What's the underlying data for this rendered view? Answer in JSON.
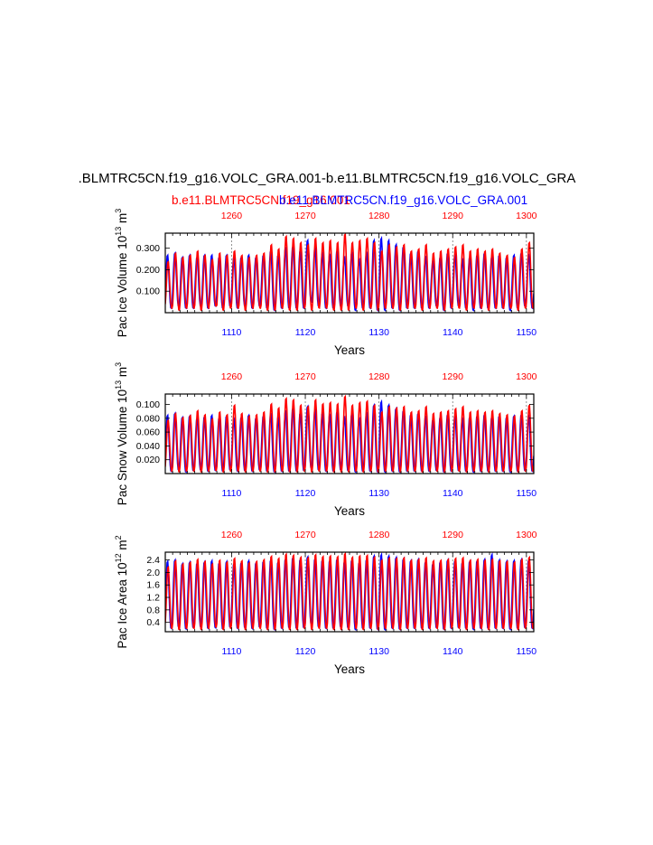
{
  "figure": {
    "main_title": ".BLMTRC5CN.f19_g16.VOLC_GRA.001-b.e11.BLMTRC5CN.f19_g16.VOLC_GRA",
    "subtitle_red": "b.e11.BLMTRC5CN.f19_g16.001",
    "subtitle_blue": "b.e11.BLMTRC5CN.f19_g16.VOLC_GRA.001",
    "colors": {
      "red": "#ff0000",
      "blue": "#0000ff",
      "axis": "#000000",
      "grid": "#777777"
    }
  },
  "chart_data": [
    {
      "type": "line",
      "ylabel_base": "Pac Ice Volume 10",
      "ylabel_exp": "13",
      "ylabel_unit": " m",
      "ylabel_unit_exp": "3",
      "xlabel": "Years",
      "bottom_axis": {
        "range": [
          1101,
          1151
        ],
        "ticks": [
          1110,
          1120,
          1130,
          1140,
          1150
        ],
        "color": "blue"
      },
      "top_axis": {
        "range": [
          1251,
          1301
        ],
        "ticks": [
          1260,
          1270,
          1280,
          1290,
          1300
        ],
        "color": "red"
      },
      "ylim": [
        0.0,
        0.37
      ],
      "yticks": [
        0.1,
        0.2,
        0.3
      ],
      "ytick_labels": [
        "0.100",
        "0.200",
        "0.300"
      ],
      "series": [
        {
          "name": "b.e11.BLMTRC5CN.f19_g16.VOLC_GRA.001",
          "color": "blue",
          "cycle_min": 0.03,
          "cycle_max": 0.27,
          "peaks": [
            0.27,
            0.28,
            0.26,
            0.27,
            0.26,
            0.27,
            0.27,
            0.26,
            0.27,
            0.26,
            0.26,
            0.27,
            0.26,
            0.27,
            0.29,
            0.27,
            0.3,
            0.31,
            0.29,
            0.34,
            0.3,
            0.28,
            0.27,
            0.29,
            0.26,
            0.28,
            0.25,
            0.28,
            0.34,
            0.35,
            0.34,
            0.32,
            0.31,
            0.28,
            0.29,
            0.26,
            0.24,
            0.26,
            0.28,
            0.27,
            0.25,
            0.26,
            0.27,
            0.28,
            0.26,
            0.27,
            0.26,
            0.27,
            0.28,
            0.27
          ],
          "troughs": [
            0.02,
            0.03,
            0.02,
            0.02,
            0.03,
            0.02,
            0.03,
            0.02,
            0.03,
            0.02,
            0.03,
            0.02,
            0.03,
            0.02,
            0.01,
            0.02,
            0.02,
            0.02,
            0.02,
            0.05,
            0.03,
            0.02,
            0.02,
            0.03,
            0.03,
            0.01,
            0.02,
            0.02,
            0.01,
            0.01,
            0.02,
            0.01,
            0.02,
            0.02,
            0.02,
            0.02,
            0.03,
            0.01,
            0.02,
            0.03,
            0.02,
            0.01,
            0.02,
            0.02,
            0.02,
            0.02,
            0.01,
            0.02,
            0.03,
            0.02
          ]
        },
        {
          "name": "b.e11.BLMTRC5CN.f19_g16.001",
          "color": "red",
          "cycle_min": 0.02,
          "cycle_max": 0.3,
          "peaks": [
            0.24,
            0.28,
            0.26,
            0.27,
            0.29,
            0.27,
            0.25,
            0.28,
            0.27,
            0.29,
            0.27,
            0.26,
            0.27,
            0.28,
            0.32,
            0.3,
            0.36,
            0.35,
            0.33,
            0.32,
            0.35,
            0.33,
            0.34,
            0.33,
            0.37,
            0.33,
            0.34,
            0.35,
            0.33,
            0.29,
            0.32,
            0.31,
            0.32,
            0.29,
            0.3,
            0.32,
            0.28,
            0.29,
            0.3,
            0.31,
            0.32,
            0.29,
            0.3,
            0.29,
            0.3,
            0.28,
            0.27,
            0.26,
            0.3,
            0.33
          ],
          "troughs": [
            0.02,
            0.01,
            0.02,
            0.02,
            0.01,
            0.02,
            0.03,
            0.01,
            0.02,
            0.02,
            0.01,
            0.02,
            0.02,
            0.01,
            0.01,
            0.02,
            0.01,
            0.01,
            0.02,
            0.01,
            0.02,
            0.02,
            0.01,
            0.01,
            0.01,
            0.02,
            0.01,
            0.02,
            0.01,
            0.02,
            0.02,
            0.01,
            0.02,
            0.02,
            0.01,
            0.02,
            0.02,
            0.01,
            0.02,
            0.02,
            0.01,
            0.02,
            0.02,
            0.01,
            0.02,
            0.02,
            0.02,
            0.01,
            0.02,
            0.02
          ]
        }
      ]
    },
    {
      "type": "line",
      "ylabel_base": "Pac Snow Volume 10",
      "ylabel_exp": "13",
      "ylabel_unit": " m",
      "ylabel_unit_exp": "3",
      "xlabel": "Years",
      "bottom_axis": {
        "range": [
          1101,
          1151
        ],
        "ticks": [
          1110,
          1120,
          1130,
          1140,
          1150
        ],
        "color": "blue"
      },
      "top_axis": {
        "range": [
          1251,
          1301
        ],
        "ticks": [
          1260,
          1270,
          1280,
          1290,
          1300
        ],
        "color": "red"
      },
      "ylim": [
        0.0,
        0.115
      ],
      "yticks": [
        0.02,
        0.04,
        0.06,
        0.08,
        0.1
      ],
      "ytick_labels": [
        "0.020",
        "0.040",
        "0.060",
        "0.080",
        "0.100"
      ],
      "series": [
        {
          "name": "b.e11.BLMTRC5CN.f19_g16.VOLC_GRA.001",
          "color": "blue",
          "cycle_min": 0.003,
          "cycle_max": 0.085,
          "peaks": [
            0.085,
            0.088,
            0.082,
            0.084,
            0.08,
            0.083,
            0.085,
            0.081,
            0.084,
            0.08,
            0.082,
            0.085,
            0.081,
            0.084,
            0.086,
            0.082,
            0.09,
            0.095,
            0.088,
            0.098,
            0.092,
            0.088,
            0.085,
            0.09,
            0.082,
            0.086,
            0.08,
            0.088,
            0.1,
            0.105,
            0.1,
            0.095,
            0.092,
            0.086,
            0.088,
            0.082,
            0.078,
            0.082,
            0.086,
            0.084,
            0.08,
            0.082,
            0.084,
            0.086,
            0.082,
            0.084,
            0.082,
            0.084,
            0.086,
            0.084
          ],
          "troughs": [
            0.003,
            0.005,
            0.002,
            0.004,
            0.005,
            0.003,
            0.004,
            0.003,
            0.005,
            0.003,
            0.004,
            0.003,
            0.005,
            0.003,
            0.002,
            0.003,
            0.003,
            0.003,
            0.004,
            0.008,
            0.005,
            0.003,
            0.003,
            0.005,
            0.004,
            0.002,
            0.003,
            0.003,
            0.002,
            0.002,
            0.003,
            0.002,
            0.003,
            0.003,
            0.003,
            0.003,
            0.004,
            0.002,
            0.003,
            0.004,
            0.003,
            0.002,
            0.003,
            0.003,
            0.003,
            0.003,
            0.002,
            0.003,
            0.004,
            0.003
          ]
        },
        {
          "name": "b.e11.BLMTRC5CN.f19_g16.001",
          "color": "red",
          "cycle_min": 0.002,
          "cycle_max": 0.095,
          "peaks": [
            0.078,
            0.088,
            0.082,
            0.085,
            0.092,
            0.086,
            0.08,
            0.09,
            0.086,
            0.1,
            0.088,
            0.084,
            0.086,
            0.09,
            0.102,
            0.096,
            0.11,
            0.108,
            0.1,
            0.098,
            0.108,
            0.102,
            0.104,
            0.102,
            0.113,
            0.1,
            0.104,
            0.106,
            0.1,
            0.09,
            0.098,
            0.096,
            0.098,
            0.09,
            0.092,
            0.098,
            0.088,
            0.09,
            0.092,
            0.095,
            0.098,
            0.09,
            0.092,
            0.09,
            0.092,
            0.088,
            0.086,
            0.084,
            0.092,
            0.1
          ],
          "troughs": [
            0.003,
            0.002,
            0.003,
            0.003,
            0.002,
            0.003,
            0.004,
            0.002,
            0.003,
            0.003,
            0.002,
            0.003,
            0.003,
            0.002,
            0.002,
            0.003,
            0.002,
            0.002,
            0.003,
            0.002,
            0.003,
            0.003,
            0.002,
            0.002,
            0.002,
            0.003,
            0.002,
            0.003,
            0.002,
            0.003,
            0.003,
            0.002,
            0.003,
            0.003,
            0.002,
            0.003,
            0.003,
            0.002,
            0.003,
            0.003,
            0.002,
            0.003,
            0.003,
            0.002,
            0.003,
            0.003,
            0.003,
            0.002,
            0.003,
            0.003
          ]
        }
      ]
    },
    {
      "type": "line",
      "ylabel_base": "Pac Ice Area 10",
      "ylabel_exp": "12",
      "ylabel_unit": " m",
      "ylabel_unit_exp": "2",
      "xlabel": "Years",
      "bottom_axis": {
        "range": [
          1101,
          1151
        ],
        "ticks": [
          1110,
          1120,
          1130,
          1140,
          1150
        ],
        "color": "blue"
      },
      "top_axis": {
        "range": [
          1251,
          1301
        ],
        "ticks": [
          1260,
          1270,
          1280,
          1290,
          1300
        ],
        "color": "red"
      },
      "ylim": [
        0.1,
        2.65
      ],
      "yticks": [
        0.4,
        0.8,
        1.2,
        1.6,
        2.0,
        2.4
      ],
      "ytick_labels": [
        "0.4",
        "0.8",
        "1.2",
        "1.6",
        "2.0",
        "2.4"
      ],
      "series": [
        {
          "name": "b.e11.BLMTRC5CN.f19_g16.VOLC_GRA.001",
          "color": "blue",
          "cycle_min": 0.2,
          "cycle_max": 2.35,
          "peaks": [
            2.38,
            2.42,
            2.3,
            2.35,
            2.32,
            2.36,
            2.4,
            2.33,
            2.37,
            2.3,
            2.34,
            2.4,
            2.33,
            2.38,
            2.42,
            2.36,
            2.45,
            2.5,
            2.44,
            2.52,
            2.46,
            2.42,
            2.4,
            2.45,
            2.36,
            2.42,
            2.34,
            2.44,
            2.55,
            2.6,
            2.55,
            2.5,
            2.46,
            2.4,
            2.44,
            2.36,
            2.3,
            2.36,
            2.42,
            2.4,
            2.34,
            2.38,
            2.4,
            2.44,
            2.6,
            2.42,
            2.38,
            2.4,
            2.44,
            2.42
          ],
          "troughs": [
            0.2,
            0.25,
            0.18,
            0.22,
            0.25,
            0.2,
            0.22,
            0.18,
            0.24,
            0.2,
            0.22,
            0.19,
            0.24,
            0.2,
            0.16,
            0.2,
            0.22,
            0.2,
            0.22,
            0.35,
            0.25,
            0.2,
            0.2,
            0.25,
            0.22,
            0.16,
            0.2,
            0.2,
            0.17,
            0.16,
            0.2,
            0.17,
            0.2,
            0.2,
            0.2,
            0.2,
            0.22,
            0.17,
            0.2,
            0.22,
            0.2,
            0.17,
            0.2,
            0.2,
            0.2,
            0.2,
            0.17,
            0.2,
            0.22,
            0.2
          ]
        },
        {
          "name": "b.e11.BLMTRC5CN.f19_g16.001",
          "color": "red",
          "cycle_min": 0.15,
          "cycle_max": 2.45,
          "peaks": [
            2.2,
            2.4,
            2.3,
            2.35,
            2.45,
            2.38,
            2.3,
            2.42,
            2.36,
            2.48,
            2.4,
            2.34,
            2.38,
            2.44,
            2.55,
            2.48,
            2.62,
            2.58,
            2.52,
            2.5,
            2.6,
            2.54,
            2.56,
            2.54,
            2.64,
            2.52,
            2.56,
            2.58,
            2.52,
            2.42,
            2.5,
            2.48,
            2.5,
            2.42,
            2.45,
            2.5,
            2.4,
            2.42,
            2.45,
            2.48,
            2.5,
            2.42,
            2.45,
            2.42,
            2.45,
            2.4,
            2.38,
            2.36,
            2.45,
            2.52
          ],
          "troughs": [
            0.2,
            0.16,
            0.2,
            0.2,
            0.16,
            0.2,
            0.24,
            0.16,
            0.2,
            0.2,
            0.16,
            0.2,
            0.2,
            0.16,
            0.16,
            0.2,
            0.16,
            0.16,
            0.2,
            0.16,
            0.2,
            0.2,
            0.16,
            0.16,
            0.16,
            0.2,
            0.16,
            0.2,
            0.16,
            0.2,
            0.2,
            0.16,
            0.2,
            0.2,
            0.16,
            0.2,
            0.2,
            0.16,
            0.2,
            0.2,
            0.16,
            0.2,
            0.2,
            0.16,
            0.2,
            0.2,
            0.2,
            0.16,
            0.2,
            0.2
          ]
        }
      ]
    }
  ]
}
